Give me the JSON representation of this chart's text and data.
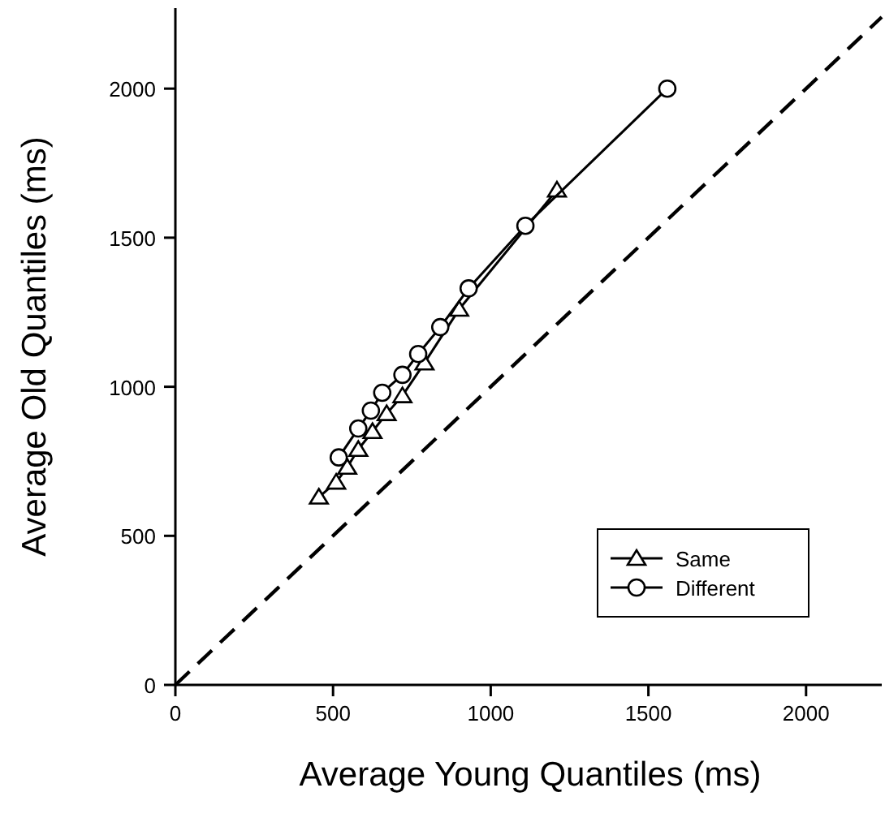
{
  "chart_data": {
    "type": "line",
    "xlabel": "Average Young Quantiles (ms)",
    "ylabel": "Average Old Quantiles (ms)",
    "xlim": [
      0,
      2240
    ],
    "ylim": [
      0,
      2270
    ],
    "xticks": [
      0,
      500,
      1000,
      1500,
      2000
    ],
    "yticks": [
      0,
      500,
      1000,
      1500,
      2000
    ],
    "grid": false,
    "legend": "bottom right",
    "series": [
      {
        "name": "Same",
        "color": "#000000",
        "marker": "triangle",
        "x": [
          455,
          510,
          545,
          580,
          625,
          670,
          720,
          790,
          900,
          1210
        ],
        "values": [
          630,
          680,
          730,
          790,
          850,
          910,
          970,
          1080,
          1260,
          1660
        ]
      },
      {
        "name": "Different",
        "color": "#000000",
        "marker": "circle",
        "x": [
          518,
          580,
          620,
          656,
          720,
          770,
          840,
          930,
          1110,
          1560
        ],
        "values": [
          763,
          860,
          920,
          980,
          1040,
          1110,
          1200,
          1330,
          1540,
          2000
        ]
      },
      {
        "color": "#000000",
        "marker": "none",
        "line_style": "dashed",
        "x": [
          0,
          2240
        ],
        "values": [
          0,
          2240
        ]
      }
    ]
  }
}
